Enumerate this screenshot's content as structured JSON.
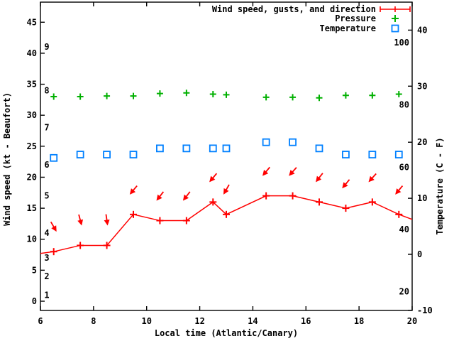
{
  "chart_data": {
    "type": "line",
    "title": "",
    "xlabel": "Local time (Atlantic/Canary)",
    "ylabel_left": "Wind speed (kt - Beaufort)",
    "ylabel_right": "Temperature (C - F)",
    "x_axis": {
      "min": 6,
      "max": 20,
      "ticks": [
        6,
        8,
        10,
        12,
        14,
        16,
        18,
        20
      ]
    },
    "y_left_axis": {
      "unit": "kt",
      "min": -1.5,
      "max": 48,
      "ticks": [
        0,
        5,
        10,
        15,
        20,
        25,
        30,
        35,
        40,
        45
      ],
      "beaufort_labels": [
        {
          "force": "1",
          "kt": 1
        },
        {
          "force": "2",
          "kt": 4
        },
        {
          "force": "3",
          "kt": 7
        },
        {
          "force": "4",
          "kt": 11
        },
        {
          "force": "5",
          "kt": 17
        },
        {
          "force": "6",
          "kt": 22
        },
        {
          "force": "7",
          "kt": 28
        },
        {
          "force": "8",
          "kt": 34
        },
        {
          "force": "9",
          "kt": 41
        }
      ]
    },
    "y_right_axis": {
      "unit": "C",
      "min": -11,
      "max": 45,
      "ticks": [
        -10,
        0,
        10,
        20,
        30,
        40
      ],
      "fahrenheit_labels": [
        20,
        40,
        60,
        80,
        100
      ]
    },
    "legend": {
      "position": "top-right-inside",
      "entries": [
        {
          "label": "Wind speed, gusts, and direction",
          "color": "#ff0000",
          "marker": "errorbar"
        },
        {
          "label": "Pressure",
          "color": "#00b000",
          "marker": "plus"
        },
        {
          "label": "Temperature",
          "color": "#0080ff",
          "marker": "open-square"
        }
      ]
    },
    "x": [
      6.5,
      7.5,
      8.5,
      9.5,
      10.5,
      11.5,
      12.5,
      13.0,
      14.5,
      15.5,
      16.5,
      17.5,
      18.5,
      19.5
    ],
    "series": [
      {
        "name": "wind_speed",
        "axis": "left",
        "unit": "kt",
        "color": "#ff0000",
        "values": [
          8,
          9,
          9,
          14,
          13,
          13,
          16,
          14,
          17,
          17,
          16,
          15,
          16,
          14
        ],
        "direction_arrow_deg_from_down": [
          -30,
          -15,
          -8,
          40,
          38,
          38,
          40,
          30,
          40,
          42,
          38,
          40,
          42,
          40
        ],
        "line_extension": {
          "start": [
            6.0,
            7.7
          ],
          "end": [
            20.0,
            13.2
          ]
        }
      },
      {
        "name": "pressure",
        "axis": "left-kt-equivalent-position",
        "unit": "plotted-position-kt-scale",
        "color": "#00b000",
        "values": [
          33.0,
          33.0,
          33.1,
          33.1,
          33.5,
          33.6,
          33.4,
          33.3,
          32.9,
          32.9,
          32.8,
          33.2,
          33.2,
          33.4
        ]
      },
      {
        "name": "temperature",
        "axis": "right",
        "unit": "C",
        "color": "#0080ff",
        "values": [
          17.2,
          17.8,
          17.8,
          17.8,
          18.9,
          18.9,
          18.9,
          18.9,
          20.0,
          20.0,
          18.9,
          17.8,
          17.8,
          17.8
        ]
      }
    ]
  },
  "colors": {
    "wind": "#ff0000",
    "pressure": "#00b000",
    "temperature": "#0080ff",
    "axis": "#000000",
    "background": "#ffffff"
  }
}
